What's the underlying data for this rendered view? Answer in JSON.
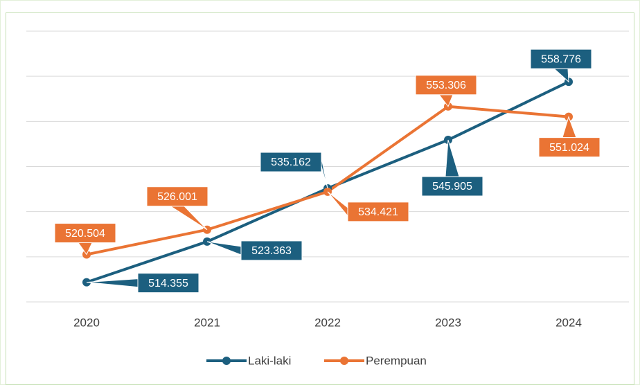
{
  "chart_data": {
    "type": "line",
    "categories": [
      "2020",
      "2021",
      "2022",
      "2023",
      "2024"
    ],
    "series": [
      {
        "name": "Laki-laki",
        "color": "#1c5f7f",
        "values": [
          514355,
          523363,
          535162,
          545905,
          558776
        ],
        "value_labels": [
          "514.355",
          "523.363",
          "535.162",
          "545.905",
          "558.776"
        ]
      },
      {
        "name": "Perempuan",
        "color": "#ea7434",
        "values": [
          520504,
          526001,
          534421,
          553306,
          551024
        ],
        "value_labels": [
          "520.504",
          "526.001",
          "534.421",
          "553.306",
          "551.024"
        ]
      }
    ],
    "ylim": [
      510000,
      570000
    ],
    "yticks": [
      510000,
      520000,
      530000,
      540000,
      550000,
      560000,
      570000
    ],
    "grid": true,
    "legend": "bottom"
  }
}
